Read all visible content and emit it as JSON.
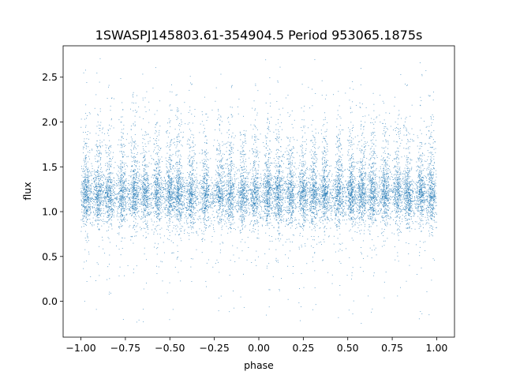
{
  "chart_data": {
    "type": "scatter",
    "title": "1SWASPJ145803.61-354904.5 Period 953065.1875s",
    "xlabel": "phase",
    "ylabel": "flux",
    "xlim": [
      -1.1,
      1.1
    ],
    "ylim": [
      -0.4,
      2.85
    ],
    "x_ticks": [
      -1.0,
      -0.75,
      -0.5,
      -0.25,
      0.0,
      0.25,
      0.5,
      0.75,
      1.0
    ],
    "x_tick_labels": [
      "−1.00",
      "−0.75",
      "−0.50",
      "−0.25",
      "0.00",
      "0.25",
      "0.50",
      "0.75",
      "1.00"
    ],
    "y_ticks": [
      0.0,
      0.5,
      1.0,
      1.5,
      2.0,
      2.5
    ],
    "y_tick_labels": [
      "0.0",
      "0.5",
      "1.0",
      "1.5",
      "2.0",
      "2.5"
    ],
    "grid": false,
    "marker_color": "#1f77b4",
    "series": [
      {
        "x_range": [
          -1.0,
          1.0
        ],
        "baseline_flux": 1.15,
        "flux_range": [
          -0.25,
          2.75
        ],
        "point_count": 14000,
        "stripe_centers": [
          -0.97,
          -0.9,
          -0.84,
          -0.77,
          -0.7,
          -0.64,
          -0.57,
          -0.5,
          -0.45,
          -0.38,
          -0.3,
          -0.22,
          -0.16,
          -0.09,
          -0.02,
          0.05,
          0.11,
          0.18,
          0.25,
          0.31,
          0.37,
          0.45,
          0.52,
          0.58,
          0.64,
          0.71,
          0.78,
          0.84,
          0.91,
          0.97
        ]
      }
    ]
  }
}
